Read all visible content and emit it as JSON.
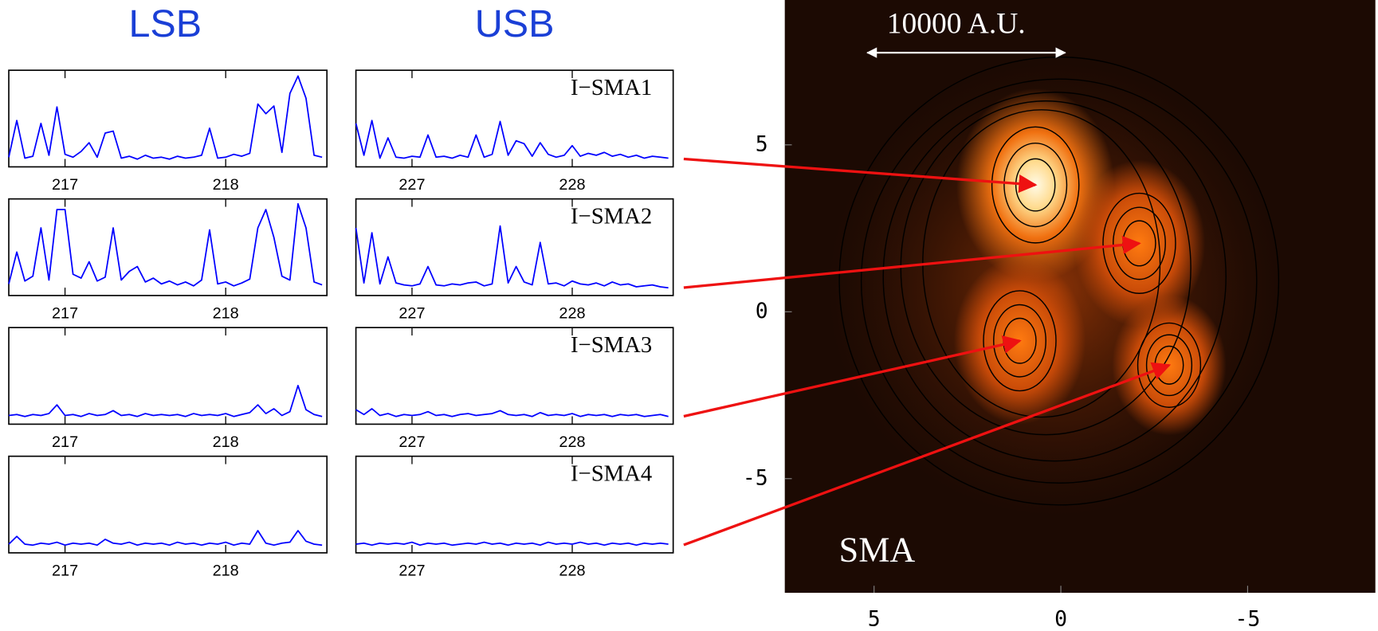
{
  "chart_data": [
    {
      "type": "line",
      "title": "LSB",
      "color": "#0000ff",
      "xlim": [
        216.65,
        218.63
      ],
      "ylim": [
        0,
        10
      ],
      "xticks": [
        217,
        218
      ],
      "x": [
        216.65,
        216.7,
        216.75,
        216.8,
        216.85,
        216.9,
        216.95,
        217,
        217.05,
        217.1,
        217.15,
        217.2,
        217.25,
        217.3,
        217.35,
        217.4,
        217.45,
        217.5,
        217.55,
        217.6,
        217.65,
        217.7,
        217.75,
        217.8,
        217.85,
        217.9,
        217.95,
        218,
        218.05,
        218.1,
        218.15,
        218.2,
        218.25,
        218.3,
        218.35,
        218.4,
        218.45,
        218.5,
        218.55,
        218.6
      ],
      "values": [
        1.0,
        4.8,
        0.9,
        1.1,
        4.5,
        1.2,
        6.2,
        1.3,
        1.0,
        1.6,
        2.5,
        1.0,
        3.5,
        3.7,
        0.9,
        1.1,
        0.8,
        1.2,
        0.9,
        1.0,
        0.8,
        1.1,
        0.9,
        1.0,
        1.2,
        4.0,
        0.9,
        1.0,
        1.3,
        1.1,
        1.4,
        6.5,
        5.5,
        6.3,
        1.5,
        7.6,
        9.4,
        7.1,
        1.2,
        1.0
      ]
    },
    {
      "type": "line",
      "title": "USB",
      "label": "I−SMA1",
      "color": "#0000ff",
      "xlim": [
        226.65,
        228.63
      ],
      "ylim": [
        0,
        10
      ],
      "xticks": [
        227,
        228
      ],
      "x": [
        226.65,
        226.7,
        226.75,
        226.8,
        226.85,
        226.9,
        226.95,
        227,
        227.05,
        227.1,
        227.15,
        227.2,
        227.25,
        227.3,
        227.35,
        227.4,
        227.45,
        227.5,
        227.55,
        227.6,
        227.65,
        227.7,
        227.75,
        227.8,
        227.85,
        227.9,
        227.95,
        228,
        228.05,
        228.1,
        228.15,
        228.2,
        228.25,
        228.3,
        228.35,
        228.4,
        228.45,
        228.5,
        228.55,
        228.6
      ],
      "values": [
        4.5,
        1.2,
        4.8,
        0.9,
        3.0,
        1.0,
        0.9,
        1.1,
        1.0,
        3.3,
        1.0,
        1.1,
        0.9,
        1.2,
        1.0,
        3.3,
        1.0,
        1.3,
        4.7,
        1.2,
        2.7,
        2.4,
        1.1,
        2.5,
        1.3,
        1.0,
        1.2,
        2.2,
        1.1,
        1.4,
        1.2,
        1.5,
        1.1,
        1.3,
        1.0,
        1.2,
        0.9,
        1.1,
        1.0,
        0.9
      ]
    },
    {
      "type": "line",
      "color": "#0000ff",
      "xlim": [
        216.65,
        218.63
      ],
      "ylim": [
        0,
        10
      ],
      "xticks": [
        217,
        218
      ],
      "x": [
        216.65,
        216.7,
        216.75,
        216.8,
        216.85,
        216.9,
        216.95,
        217,
        217.05,
        217.1,
        217.15,
        217.2,
        217.25,
        217.3,
        217.35,
        217.4,
        217.45,
        217.5,
        217.55,
        217.6,
        217.65,
        217.7,
        217.75,
        217.8,
        217.85,
        217.9,
        217.95,
        218,
        218.05,
        218.1,
        218.15,
        218.2,
        218.25,
        218.3,
        218.35,
        218.4,
        218.45,
        218.5,
        218.55,
        218.6
      ],
      "values": [
        1.2,
        4.5,
        1.5,
        2.0,
        7.0,
        1.6,
        8.9,
        8.9,
        2.2,
        1.8,
        3.5,
        1.5,
        1.9,
        7.0,
        1.6,
        2.5,
        3.0,
        1.4,
        1.8,
        1.2,
        1.5,
        1.1,
        1.4,
        1.0,
        1.6,
        6.8,
        1.2,
        1.4,
        1.0,
        1.3,
        1.7,
        7.0,
        8.9,
        6.0,
        2.0,
        1.6,
        9.5,
        7.0,
        1.4,
        1.1
      ]
    },
    {
      "type": "line",
      "label": "I−SMA2",
      "color": "#0000ff",
      "xlim": [
        226.65,
        228.63
      ],
      "ylim": [
        0,
        10
      ],
      "xticks": [
        227,
        228
      ],
      "x": [
        226.65,
        226.7,
        226.75,
        226.8,
        226.85,
        226.9,
        226.95,
        227,
        227.05,
        227.1,
        227.15,
        227.2,
        227.25,
        227.3,
        227.35,
        227.4,
        227.45,
        227.5,
        227.55,
        227.6,
        227.65,
        227.7,
        227.75,
        227.8,
        227.85,
        227.9,
        227.95,
        228,
        228.05,
        228.1,
        228.15,
        228.2,
        228.25,
        228.3,
        228.35,
        228.4,
        228.45,
        228.5,
        228.55,
        228.6
      ],
      "values": [
        7.0,
        1.3,
        6.5,
        1.2,
        4.0,
        1.3,
        1.1,
        1.0,
        1.2,
        3.0,
        1.1,
        1.0,
        1.2,
        1.1,
        1.3,
        1.4,
        1.0,
        1.2,
        7.2,
        1.3,
        3.0,
        1.4,
        1.1,
        5.5,
        1.2,
        1.3,
        1.0,
        1.5,
        1.2,
        1.1,
        1.3,
        1.0,
        1.4,
        1.1,
        1.2,
        0.9,
        1.0,
        1.1,
        0.9,
        0.8
      ]
    },
    {
      "type": "line",
      "color": "#0000ff",
      "xlim": [
        216.65,
        218.63
      ],
      "ylim": [
        0,
        10
      ],
      "xticks": [
        217,
        218
      ],
      "x": [
        216.65,
        216.7,
        216.75,
        216.8,
        216.85,
        216.9,
        216.95,
        217,
        217.05,
        217.1,
        217.15,
        217.2,
        217.25,
        217.3,
        217.35,
        217.4,
        217.45,
        217.5,
        217.55,
        217.6,
        217.65,
        217.7,
        217.75,
        217.8,
        217.85,
        217.9,
        217.95,
        218,
        218.05,
        218.1,
        218.15,
        218.2,
        218.25,
        218.3,
        218.35,
        218.4,
        218.45,
        218.5,
        218.55,
        218.6
      ],
      "values": [
        0.9,
        1.0,
        0.8,
        1.0,
        0.9,
        1.1,
        2.0,
        0.9,
        1.0,
        0.8,
        1.1,
        0.9,
        1.0,
        1.4,
        0.9,
        1.0,
        0.8,
        1.1,
        0.9,
        1.0,
        0.9,
        1.0,
        0.8,
        1.1,
        0.9,
        1.0,
        0.9,
        1.1,
        0.8,
        1.0,
        1.2,
        2.0,
        1.1,
        1.6,
        0.9,
        1.3,
        4.0,
        1.5,
        1.0,
        0.8
      ]
    },
    {
      "type": "line",
      "label": "I−SMA3",
      "color": "#0000ff",
      "xlim": [
        226.65,
        228.63
      ],
      "ylim": [
        0,
        10
      ],
      "xticks": [
        227,
        228
      ],
      "x": [
        226.65,
        226.7,
        226.75,
        226.8,
        226.85,
        226.9,
        226.95,
        227,
        227.05,
        227.1,
        227.15,
        227.2,
        227.25,
        227.3,
        227.35,
        227.4,
        227.45,
        227.5,
        227.55,
        227.6,
        227.65,
        227.7,
        227.75,
        227.8,
        227.85,
        227.9,
        227.95,
        228,
        228.05,
        228.1,
        228.15,
        228.2,
        228.25,
        228.3,
        228.35,
        228.4,
        228.45,
        228.5,
        228.55,
        228.6
      ],
      "values": [
        1.5,
        1.0,
        1.6,
        0.9,
        1.1,
        0.8,
        1.0,
        0.9,
        1.0,
        1.3,
        0.9,
        1.0,
        0.8,
        1.0,
        1.1,
        0.9,
        1.0,
        1.1,
        1.4,
        1.0,
        0.9,
        1.0,
        0.8,
        1.2,
        0.9,
        1.0,
        0.9,
        1.1,
        0.8,
        1.0,
        0.9,
        1.0,
        0.8,
        1.0,
        0.9,
        1.0,
        0.8,
        0.9,
        1.0,
        0.8
      ]
    },
    {
      "type": "line",
      "color": "#0000ff",
      "xlim": [
        216.65,
        218.63
      ],
      "ylim": [
        0,
        10
      ],
      "xticks": [
        217,
        218
      ],
      "x": [
        216.65,
        216.7,
        216.75,
        216.8,
        216.85,
        216.9,
        216.95,
        217,
        217.05,
        217.1,
        217.15,
        217.2,
        217.25,
        217.3,
        217.35,
        217.4,
        217.45,
        217.5,
        217.55,
        217.6,
        217.65,
        217.7,
        217.75,
        217.8,
        217.85,
        217.9,
        217.95,
        218,
        218.05,
        218.1,
        218.15,
        218.2,
        218.25,
        218.3,
        218.35,
        218.4,
        218.45,
        218.5,
        218.55,
        218.6
      ],
      "values": [
        0.9,
        1.7,
        0.9,
        0.8,
        1.0,
        0.9,
        1.1,
        0.8,
        1.0,
        0.9,
        1.0,
        0.8,
        1.4,
        1.0,
        0.9,
        1.1,
        0.8,
        1.0,
        0.9,
        1.0,
        0.8,
        1.1,
        0.9,
        1.0,
        0.8,
        1.0,
        0.9,
        1.1,
        0.8,
        1.0,
        0.9,
        2.3,
        1.0,
        0.8,
        1.0,
        1.1,
        2.3,
        1.2,
        0.9,
        0.8
      ]
    },
    {
      "type": "line",
      "label": "I−SMA4",
      "color": "#0000ff",
      "xlim": [
        226.65,
        228.63
      ],
      "ylim": [
        0,
        10
      ],
      "xticks": [
        227,
        228
      ],
      "x": [
        226.65,
        226.7,
        226.75,
        226.8,
        226.85,
        226.9,
        226.95,
        227,
        227.05,
        227.1,
        227.15,
        227.2,
        227.25,
        227.3,
        227.35,
        227.4,
        227.45,
        227.5,
        227.55,
        227.6,
        227.65,
        227.7,
        227.75,
        227.8,
        227.85,
        227.9,
        227.95,
        228,
        228.05,
        228.1,
        228.15,
        228.2,
        228.25,
        228.3,
        228.35,
        228.4,
        228.45,
        228.5,
        228.55,
        228.6
      ],
      "values": [
        0.9,
        1.0,
        0.8,
        1.0,
        0.9,
        1.0,
        0.9,
        1.1,
        0.8,
        1.0,
        0.9,
        1.0,
        0.8,
        0.9,
        1.0,
        0.9,
        1.1,
        0.9,
        1.0,
        0.8,
        1.0,
        0.9,
        1.0,
        0.8,
        1.1,
        0.9,
        1.0,
        0.9,
        1.1,
        0.9,
        1.0,
        0.8,
        1.0,
        0.9,
        1.0,
        0.8,
        1.0,
        0.9,
        1.0,
        0.9
      ]
    },
    {
      "type": "image",
      "xlim": [
        7.39,
        -8.42
      ],
      "ylim": [
        -8.42,
        9.34
      ],
      "xticks": [
        5,
        0,
        -5
      ],
      "yticks": [
        5,
        0,
        -5
      ],
      "scale_bar": "10000 A.U.",
      "annotation": "SMA",
      "arrow_color": "#ee1111",
      "sources": {
        "x": [
          0.68,
          -2.1,
          1.1,
          -2.9
        ],
        "y": [
          3.8,
          2.05,
          -0.87,
          -1.6
        ]
      }
    }
  ]
}
